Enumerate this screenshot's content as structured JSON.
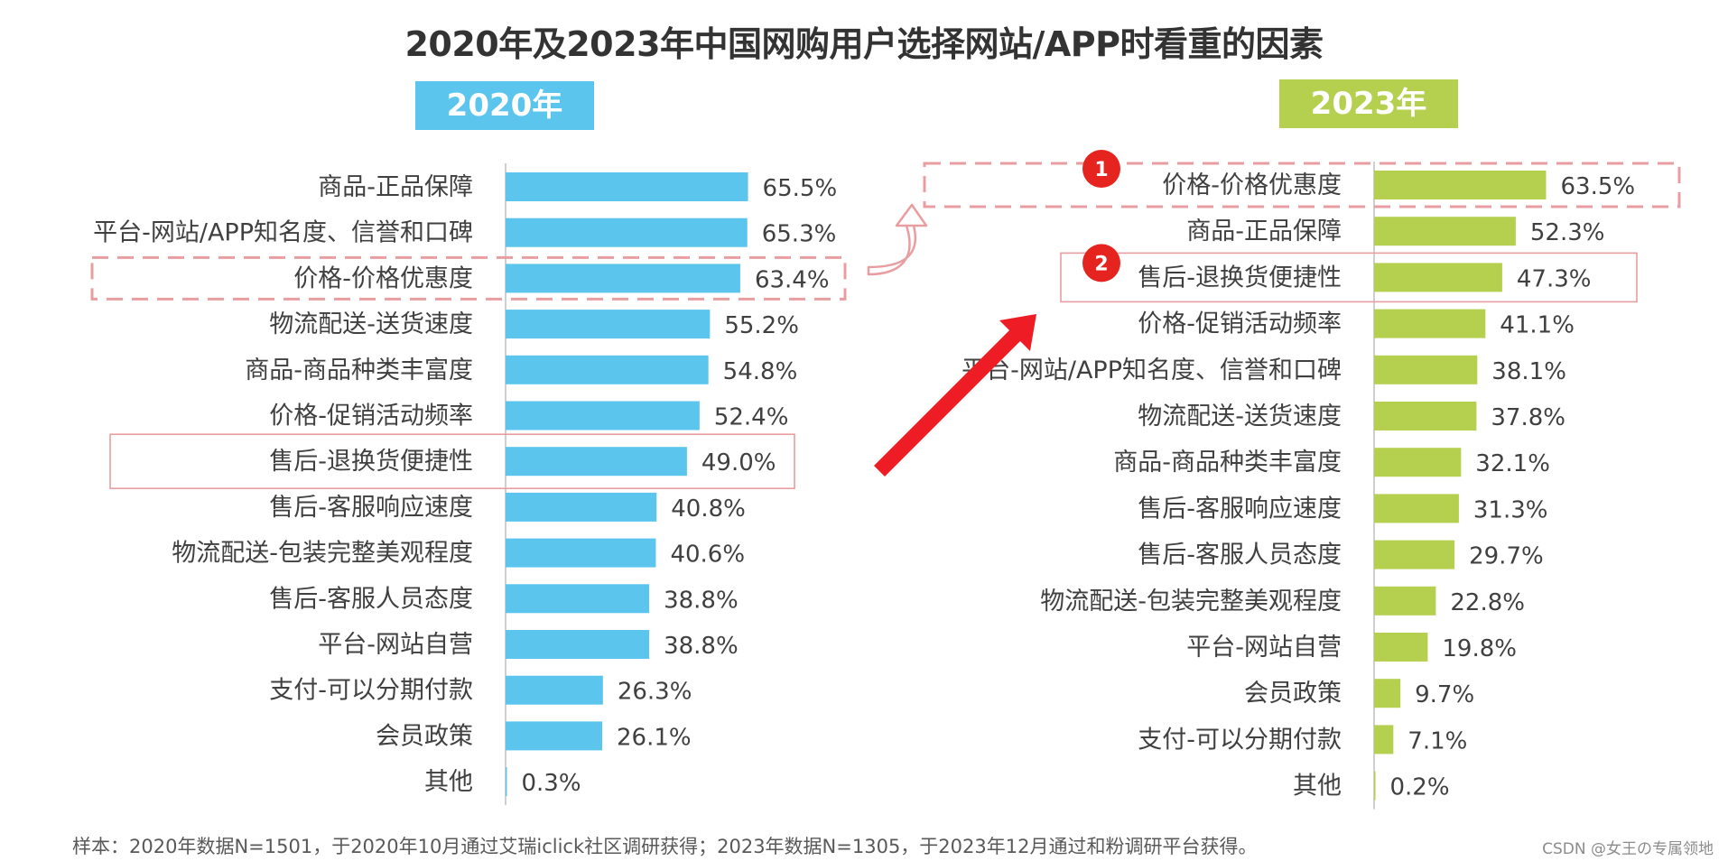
{
  "title": "2020年及2023年中国网购用户选择网站/APP时看重的因素",
  "colors": {
    "left_bar": "#5bc5ee",
    "right_bar": "#b5cf4f",
    "highlight": "#e89ea0",
    "badge": "#e52420",
    "arrow": "#ee1c24"
  },
  "chart_data": [
    {
      "type": "bar",
      "orientation": "horizontal",
      "title": "2020年",
      "unit": "%",
      "xlim": [
        0,
        100
      ],
      "categories": [
        "商品-正品保障",
        "平台-网站/APP知名度、信誉和口碑",
        "价格-价格优惠度",
        "物流配送-送货速度",
        "商品-商品种类丰富度",
        "价格-促销活动频率",
        "售后-退换货便捷性",
        "售后-客服响应速度",
        "物流配送-包装完整美观程度",
        "售后-客服人员态度",
        "平台-网站自营",
        "支付-可以分期付款",
        "会员政策",
        "其他"
      ],
      "values": [
        65.5,
        65.3,
        63.4,
        55.2,
        54.8,
        52.4,
        49.0,
        40.8,
        40.6,
        38.8,
        38.8,
        26.3,
        26.1,
        0.3
      ],
      "value_labels": [
        "65.5%",
        "65.3%",
        "63.4%",
        "55.2%",
        "54.8%",
        "52.4%",
        "49.0%",
        "40.8%",
        "40.6%",
        "38.8%",
        "38.8%",
        "26.3%",
        "26.1%",
        "0.3%"
      ],
      "highlighted": [
        {
          "category": "价格-价格优惠度",
          "style": "dashed"
        },
        {
          "category": "售后-退换货便捷性",
          "style": "solid"
        }
      ]
    },
    {
      "type": "bar",
      "orientation": "horizontal",
      "title": "2023年",
      "unit": "%",
      "xlim": [
        0,
        100
      ],
      "categories": [
        "价格-价格优惠度",
        "商品-正品保障",
        "售后-退换货便捷性",
        "价格-促销活动频率",
        "平台-网站/APP知名度、信誉和口碑",
        "物流配送-送货速度",
        "商品-商品种类丰富度",
        "售后-客服响应速度",
        "售后-客服人员态度",
        "物流配送-包装完整美观程度",
        "平台-网站自营",
        "会员政策",
        "支付-可以分期付款",
        "其他"
      ],
      "values": [
        63.5,
        52.3,
        47.3,
        41.1,
        38.1,
        37.8,
        32.1,
        31.3,
        29.7,
        22.8,
        19.8,
        9.7,
        7.1,
        0.2
      ],
      "value_labels": [
        "63.5%",
        "52.3%",
        "47.3%",
        "41.1%",
        "38.1%",
        "37.8%",
        "32.1%",
        "31.3%",
        "29.7%",
        "22.8%",
        "19.8%",
        "9.7%",
        "7.1%",
        "0.2%"
      ],
      "highlighted": [
        {
          "category": "价格-价格优惠度",
          "style": "dashed",
          "badge": "1"
        },
        {
          "category": "售后-退换货便捷性",
          "style": "solid",
          "badge": "2"
        }
      ]
    }
  ],
  "footnote": "样本：2020年数据N=1501，于2020年10月通过艾瑞iclick社区调研获得；2023年数据N=1305，于2023年12月通过和粉调研平台获得。",
  "watermark": "CSDN @女王の专属领地"
}
